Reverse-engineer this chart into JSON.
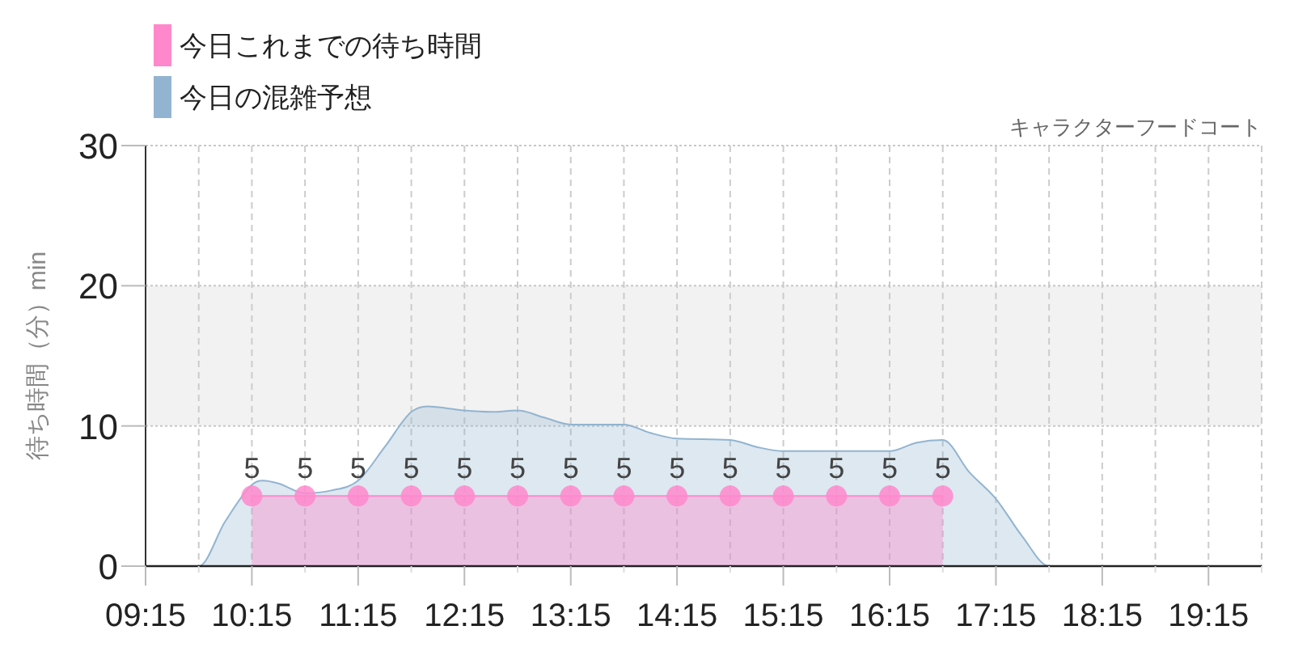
{
  "chart_data": {
    "type": "area",
    "title": "キャラクターフードコート",
    "ylabel": "待ち時間（分）min",
    "xlim": [
      9.25,
      19.75
    ],
    "xticks": [
      {
        "value": 9.25,
        "label": "09:15"
      },
      {
        "value": 9.75,
        "label": null
      },
      {
        "value": 10.25,
        "label": "10:15"
      },
      {
        "value": 10.75,
        "label": null
      },
      {
        "value": 11.25,
        "label": "11:15"
      },
      {
        "value": 11.75,
        "label": null
      },
      {
        "value": 12.25,
        "label": "12:15"
      },
      {
        "value": 12.75,
        "label": null
      },
      {
        "value": 13.25,
        "label": "13:15"
      },
      {
        "value": 13.75,
        "label": null
      },
      {
        "value": 14.25,
        "label": "14:15"
      },
      {
        "value": 14.75,
        "label": null
      },
      {
        "value": 15.25,
        "label": "15:15"
      },
      {
        "value": 15.75,
        "label": null
      },
      {
        "value": 16.25,
        "label": "16:15"
      },
      {
        "value": 16.75,
        "label": null
      },
      {
        "value": 17.25,
        "label": "17:15"
      },
      {
        "value": 17.75,
        "label": null
      },
      {
        "value": 18.25,
        "label": "18:15"
      },
      {
        "value": 18.75,
        "label": null
      },
      {
        "value": 19.25,
        "label": "19:15"
      },
      {
        "value": 19.75,
        "label": null
      }
    ],
    "ylim": [
      0,
      30
    ],
    "yticks": [
      0,
      10,
      20,
      30
    ],
    "grid": true,
    "legend": "top left",
    "bands": [
      {
        "axis": "y",
        "from": 10,
        "to": 20,
        "color": "#f2f2f2"
      }
    ],
    "series": [
      {
        "name": "今日これまでの待ち時間",
        "color": "#ff88cc",
        "marker": "circle",
        "x": [
          10.25,
          10.75,
          11.25,
          11.75,
          12.25,
          12.75,
          13.25,
          13.75,
          14.25,
          14.75,
          15.25,
          15.75,
          16.25,
          16.75
        ],
        "values": [
          5,
          5,
          5,
          5,
          5,
          5,
          5,
          5,
          5,
          5,
          5,
          5,
          5,
          5
        ],
        "value_labels": [
          "5",
          "5",
          "5",
          "5",
          "5",
          "5",
          "5",
          "5",
          "5",
          "5",
          "5",
          "5",
          "5",
          "5"
        ]
      },
      {
        "name": "今日の混雑予想",
        "color": "#92b4d0",
        "marker": "none",
        "x": [
          9.25,
          9.5,
          9.75,
          10.0,
          10.25,
          10.35,
          10.5,
          10.75,
          11.0,
          11.25,
          11.5,
          11.75,
          11.9,
          12.25,
          12.5,
          12.75,
          13.0,
          13.25,
          13.5,
          13.75,
          14.0,
          14.25,
          14.75,
          15.0,
          15.25,
          15.75,
          16.25,
          16.5,
          16.75,
          17.0,
          17.25,
          17.5,
          17.75,
          18.25,
          19.25,
          19.75
        ],
        "values": [
          0,
          0,
          0,
          3.2,
          5.8,
          6.1,
          5.9,
          5.2,
          5.4,
          6.1,
          8.5,
          11.0,
          11.4,
          11.1,
          11.0,
          11.1,
          10.6,
          10.1,
          10.1,
          10.1,
          9.5,
          9.1,
          9.0,
          8.5,
          8.2,
          8.2,
          8.2,
          8.8,
          9.0,
          6.7,
          4.8,
          2.1,
          0,
          0,
          0,
          0
        ]
      }
    ]
  }
}
